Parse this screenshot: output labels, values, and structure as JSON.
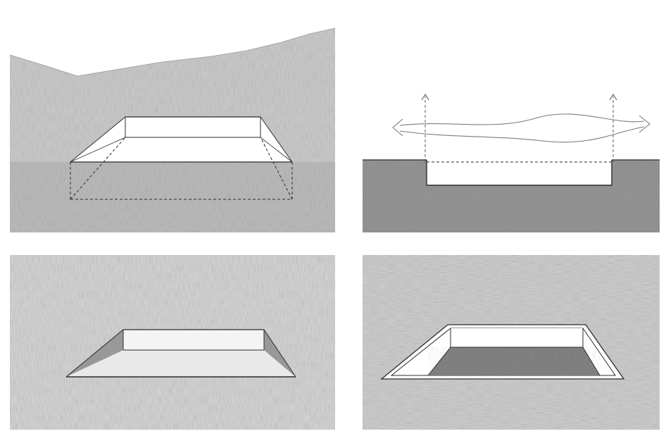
{
  "figure": {
    "panels": [
      {
        "id": "excavation-section"
      },
      {
        "id": "view-section"
      },
      {
        "id": "sunken-void"
      },
      {
        "id": "framed-void"
      }
    ]
  },
  "colors": {
    "paper": "#ffffff",
    "graphite_light": "#d8d8d8",
    "graphite_mid": "#b9b9b9",
    "graphite_dark": "#8f8f8f",
    "line": "#2b2b2b",
    "pencil_line": "#7a7a7a"
  }
}
